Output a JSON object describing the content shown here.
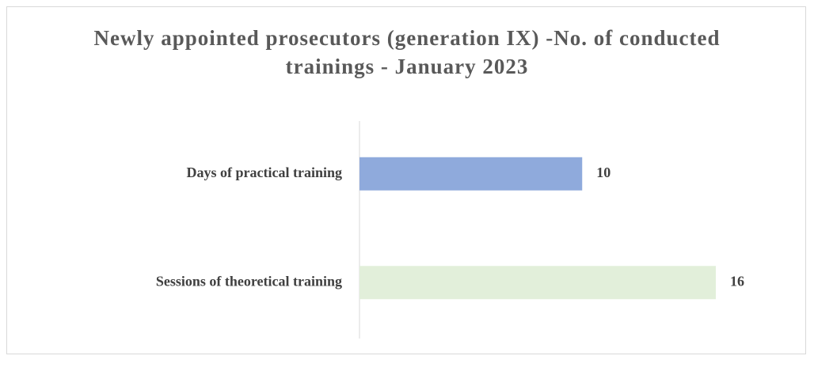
{
  "chart_data": {
    "type": "bar",
    "orientation": "horizontal",
    "title": "Newly appointed prosecutors (generation IX) -No. of conducted trainings - January 2023",
    "categories": [
      "Days of practical training",
      "Sessions of theoretical training"
    ],
    "values": [
      10,
      16
    ],
    "colors": [
      "#8faadc",
      "#e2efda"
    ]
  }
}
